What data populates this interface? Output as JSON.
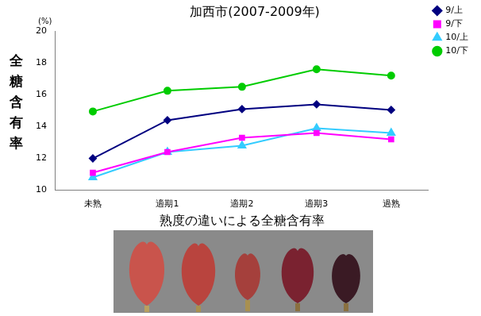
{
  "chart_data": {
    "type": "line",
    "title": "加西市(2007-2009年)",
    "x_label": "熟度の違いによる全糖含有率",
    "y_label": "全糖含有率",
    "annotations": [
      "(%)"
    ],
    "categories": [
      "未熟",
      "適期1",
      "適期2",
      "適期3",
      "過熟"
    ],
    "series": [
      {
        "name": "9/上",
        "color": "#000080",
        "marker": "diamond",
        "values": [
          12.0,
          14.4,
          15.1,
          15.4,
          15.05
        ]
      },
      {
        "name": "9/下",
        "color": "#ff00ff",
        "marker": "square",
        "values": [
          11.1,
          12.4,
          13.3,
          13.6,
          13.2
        ]
      },
      {
        "name": "10/上",
        "color": "#33ccff",
        "marker": "triangle",
        "values": [
          10.8,
          12.4,
          12.8,
          13.9,
          13.6
        ]
      },
      {
        "name": "10/下",
        "color": "#00cc00",
        "marker": "circle",
        "values": [
          14.95,
          16.25,
          16.5,
          17.6,
          17.2
        ]
      }
    ],
    "ylim": [
      10,
      20
    ],
    "yticks": [
      10,
      12,
      14,
      16,
      18,
      20
    ],
    "grid": false,
    "legend": "right"
  }
}
